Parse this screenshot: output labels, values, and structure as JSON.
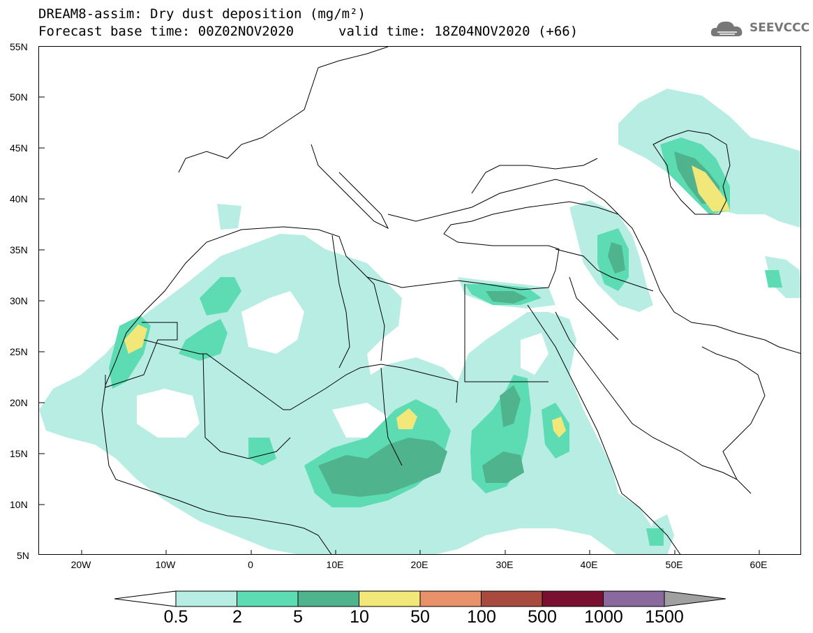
{
  "header": {
    "title_line1": "DREAM8-assim: Dry dust deposition (mg/m²)",
    "title_line2": "Forecast base time: 00Z02NOV2020",
    "title_line2b": "valid time: 18Z04NOV2020 (+66)",
    "logo_text": "SEEVCCC",
    "logo_icon": "cloud-logo-icon"
  },
  "map": {
    "lat_labels": [
      "55N",
      "50N",
      "45N",
      "40N",
      "35N",
      "30N",
      "25N",
      "20N",
      "15N",
      "10N",
      "5N"
    ],
    "lon_labels": [
      "20W",
      "10W",
      "0",
      "10E",
      "20E",
      "30E",
      "40E",
      "50E",
      "60E"
    ],
    "extent": {
      "lon_min": -25,
      "lon_max": 65,
      "lat_min": 5,
      "lat_max": 55
    }
  },
  "legend": {
    "labels": [
      "0.5",
      "2",
      "5",
      "10",
      "50",
      "100",
      "500",
      "1000",
      "1500"
    ],
    "colors": [
      "#ffffff",
      "#b8ede4",
      "#5ddcb3",
      "#4fb38e",
      "#f2e87a",
      "#e8916a",
      "#a84a3e",
      "#7a1030",
      "#8a6a9e",
      "#a0a0a0"
    ]
  }
}
